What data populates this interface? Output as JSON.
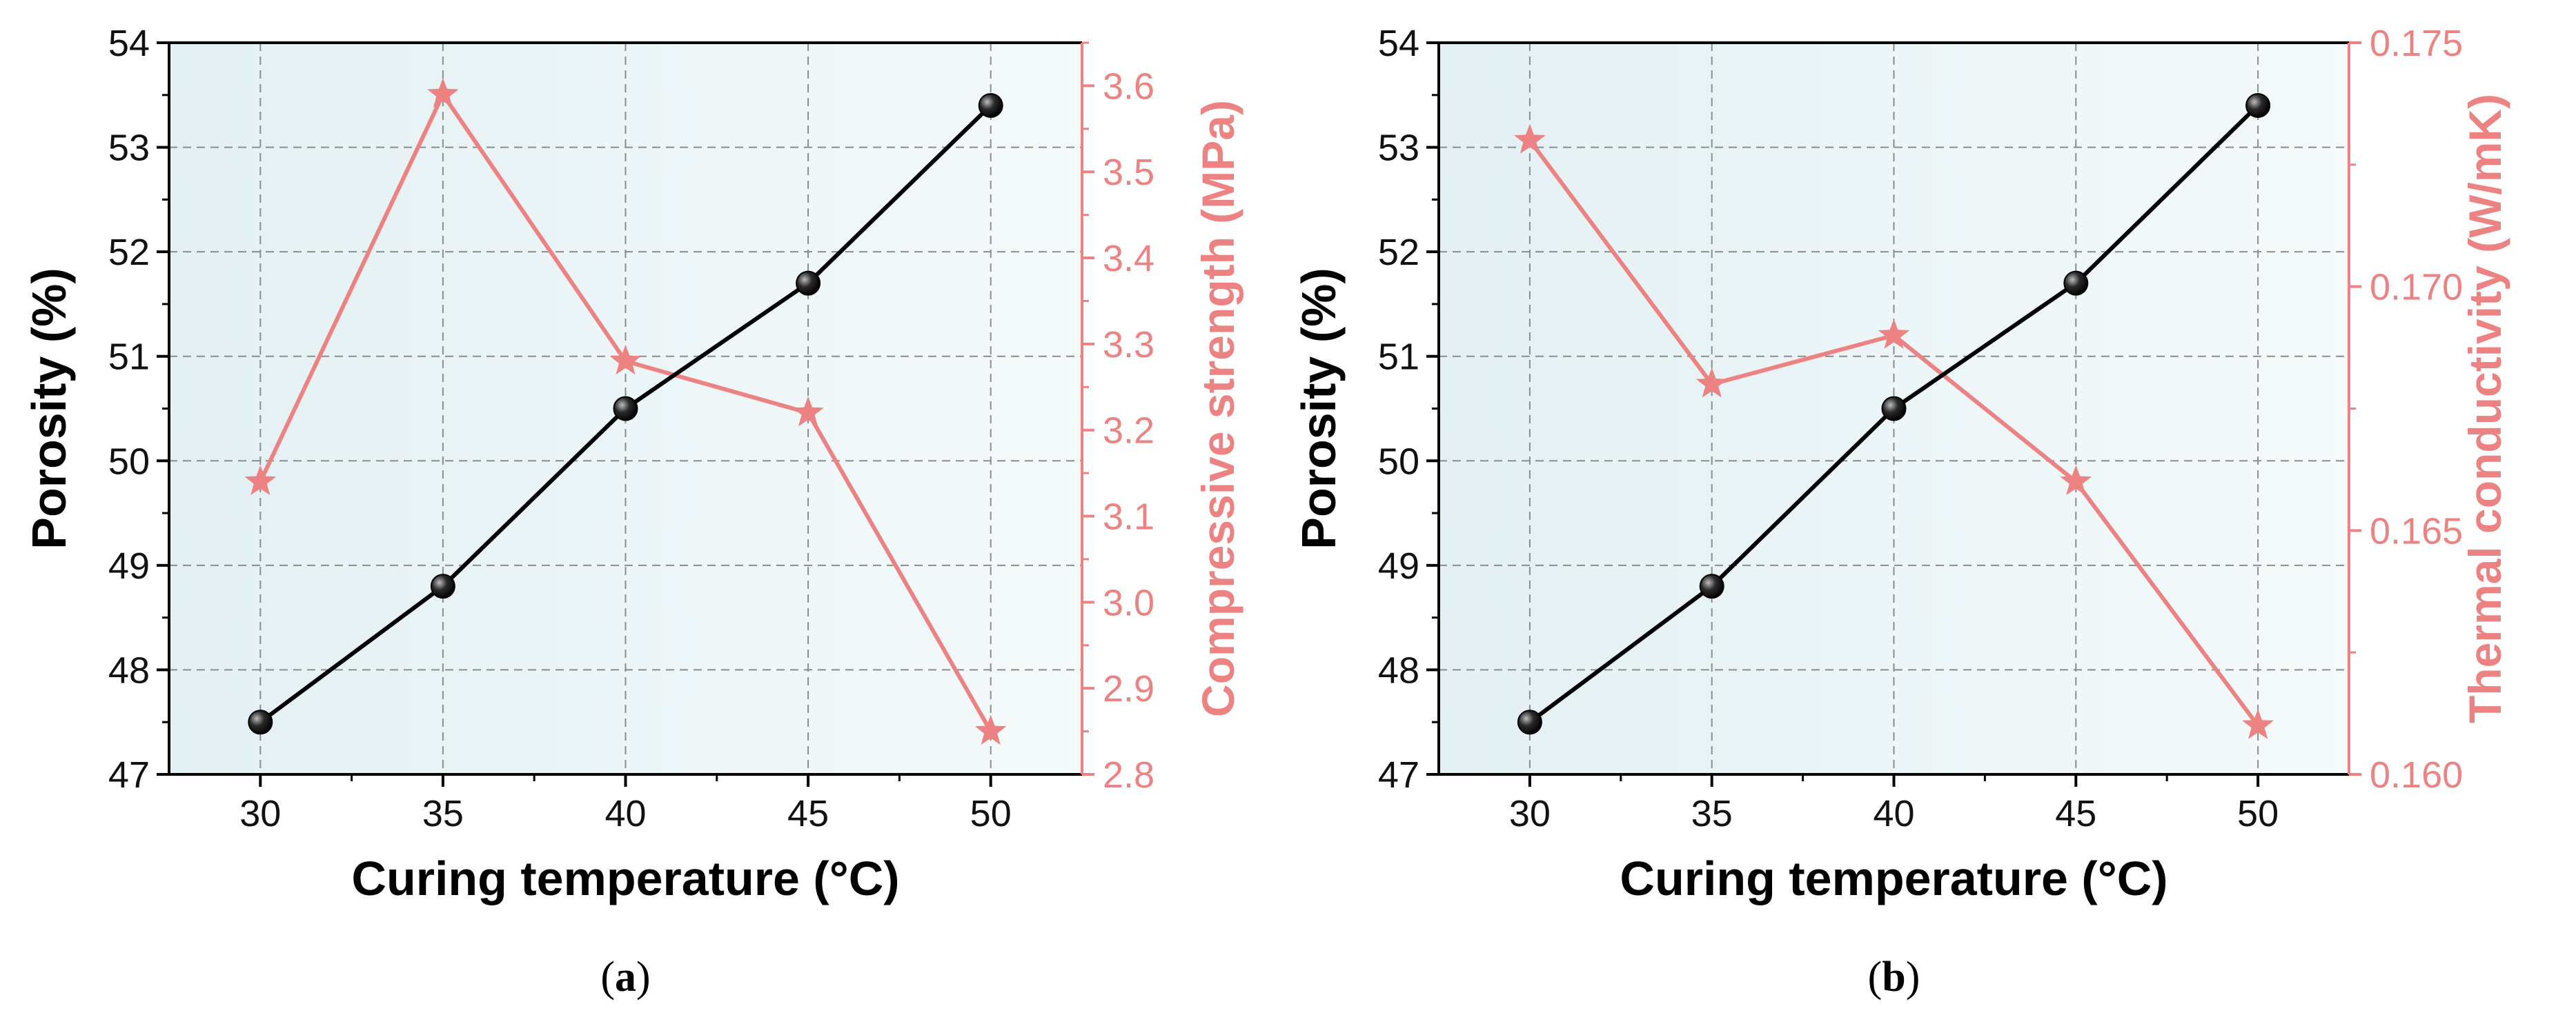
{
  "chart_data": [
    {
      "type": "line",
      "panel_label": "a",
      "xlabel": "Curing temperature (°C)",
      "ylabel": "Porosity (%)",
      "ylabel_right": "Compressive strength (MPa)",
      "x": [
        30,
        35,
        40,
        45,
        50
      ],
      "x_ticks": [
        "30",
        "35",
        "40",
        "45",
        "50"
      ],
      "ylim": [
        47,
        54
      ],
      "y_ticks": [
        "47",
        "48",
        "49",
        "50",
        "51",
        "52",
        "53",
        "54"
      ],
      "ylim_right": [
        2.8,
        3.65
      ],
      "y_ticks_right": [
        "2.8",
        "2.9",
        "3.0",
        "3.1",
        "3.2",
        "3.3",
        "3.4",
        "3.5",
        "3.6"
      ],
      "grid": true,
      "series": [
        {
          "name": "Porosity",
          "axis": "left",
          "color": "#000000",
          "marker": "sphere",
          "values": [
            47.5,
            48.8,
            50.5,
            51.7,
            53.4
          ]
        },
        {
          "name": "Compressive strength",
          "axis": "right",
          "color": "#ec8282",
          "marker": "star",
          "values": [
            3.14,
            3.59,
            3.28,
            3.22,
            2.85
          ]
        }
      ]
    },
    {
      "type": "line",
      "panel_label": "b",
      "xlabel": "Curing temperature (°C)",
      "ylabel": "Porosity (%)",
      "ylabel_right": "Thermal conductivity (W/mK)",
      "x": [
        30,
        35,
        40,
        45,
        50
      ],
      "x_ticks": [
        "30",
        "35",
        "40",
        "45",
        "50"
      ],
      "ylim": [
        47,
        54
      ],
      "y_ticks": [
        "47",
        "48",
        "49",
        "50",
        "51",
        "52",
        "53",
        "54"
      ],
      "ylim_right": [
        0.16,
        0.175
      ],
      "y_ticks_right": [
        "0.160",
        "0.165",
        "0.170",
        "0.175"
      ],
      "grid": true,
      "series": [
        {
          "name": "Porosity",
          "axis": "left",
          "color": "#000000",
          "marker": "sphere",
          "values": [
            47.5,
            48.8,
            50.5,
            51.7,
            53.4
          ]
        },
        {
          "name": "Thermal conductivity",
          "axis": "right",
          "color": "#ec8282",
          "marker": "star",
          "values": [
            0.173,
            0.168,
            0.169,
            0.166,
            0.161
          ]
        }
      ]
    }
  ]
}
